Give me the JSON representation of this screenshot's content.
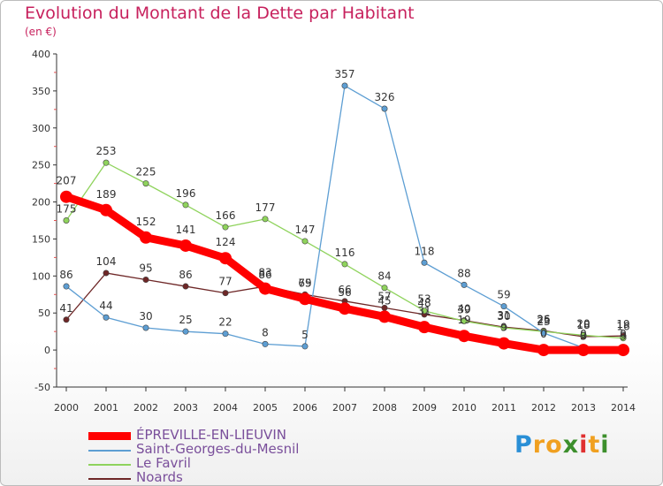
{
  "chart_data": {
    "type": "line",
    "title": "Evolution du Montant de la Dette par Habitant",
    "subtitle": "(en €)",
    "x": [
      "2000",
      "2001",
      "2002",
      "2003",
      "2004",
      "2005",
      "2006",
      "2007",
      "2008",
      "2009",
      "2010",
      "2011",
      "2012",
      "2013",
      "2014"
    ],
    "ylim": [
      -50,
      400
    ],
    "yticks": [
      -50,
      0,
      50,
      100,
      150,
      200,
      250,
      300,
      350,
      400
    ],
    "grid": false,
    "legend_position": "bottom-left",
    "series": [
      {
        "name": "ÉPREVILLE-EN-LIEUVIN",
        "color": "#ff0000",
        "values": [
          207,
          189,
          152,
          141,
          124,
          83,
          69,
          56,
          45,
          31,
          19,
          9,
          0,
          0,
          0
        ],
        "labels": [
          "207",
          "189",
          "152",
          "141",
          "124",
          "83",
          "69",
          "56",
          "45",
          "31",
          "19",
          "9",
          "0",
          "0",
          "0"
        ]
      },
      {
        "name": "Saint-Georges-du-Mesnil",
        "color": "#5d9ed3",
        "values": [
          86,
          44,
          30,
          25,
          22,
          8,
          5,
          357,
          326,
          118,
          88,
          59,
          23,
          3,
          3
        ],
        "labels": [
          "86",
          "44",
          "30",
          "25",
          "22",
          "8",
          "5",
          "357",
          "326",
          "118",
          "88",
          "59",
          "23",
          "3",
          "3"
        ]
      },
      {
        "name": "Le Favril",
        "color": "#8fd35c",
        "values": [
          175,
          253,
          225,
          196,
          166,
          177,
          147,
          116,
          84,
          53,
          39,
          30,
          25,
          20,
          16
        ],
        "labels": [
          "175",
          "253",
          "225",
          "196",
          "166",
          "177",
          "147",
          "116",
          "84",
          "53",
          "39",
          "30",
          "25",
          "20",
          "16"
        ]
      },
      {
        "name": "Noards",
        "color": "#6e2727",
        "values": [
          41,
          104,
          95,
          86,
          77,
          86,
          75,
          66,
          57,
          48,
          40,
          31,
          26,
          18,
          19
        ],
        "labels": [
          "41",
          "104",
          "95",
          "86",
          "77",
          "86",
          "75",
          "66",
          "57",
          "48",
          "40",
          "31",
          "26",
          "18",
          "19"
        ]
      }
    ]
  },
  "brand": {
    "letters": [
      "P",
      "r",
      "o",
      "x",
      "i",
      "t",
      "i"
    ],
    "colors": [
      "#2a8fd6",
      "#f0a020",
      "#f0a020",
      "#3c8f2c",
      "#e03030",
      "#f0a020",
      "#3c8f2c"
    ]
  }
}
